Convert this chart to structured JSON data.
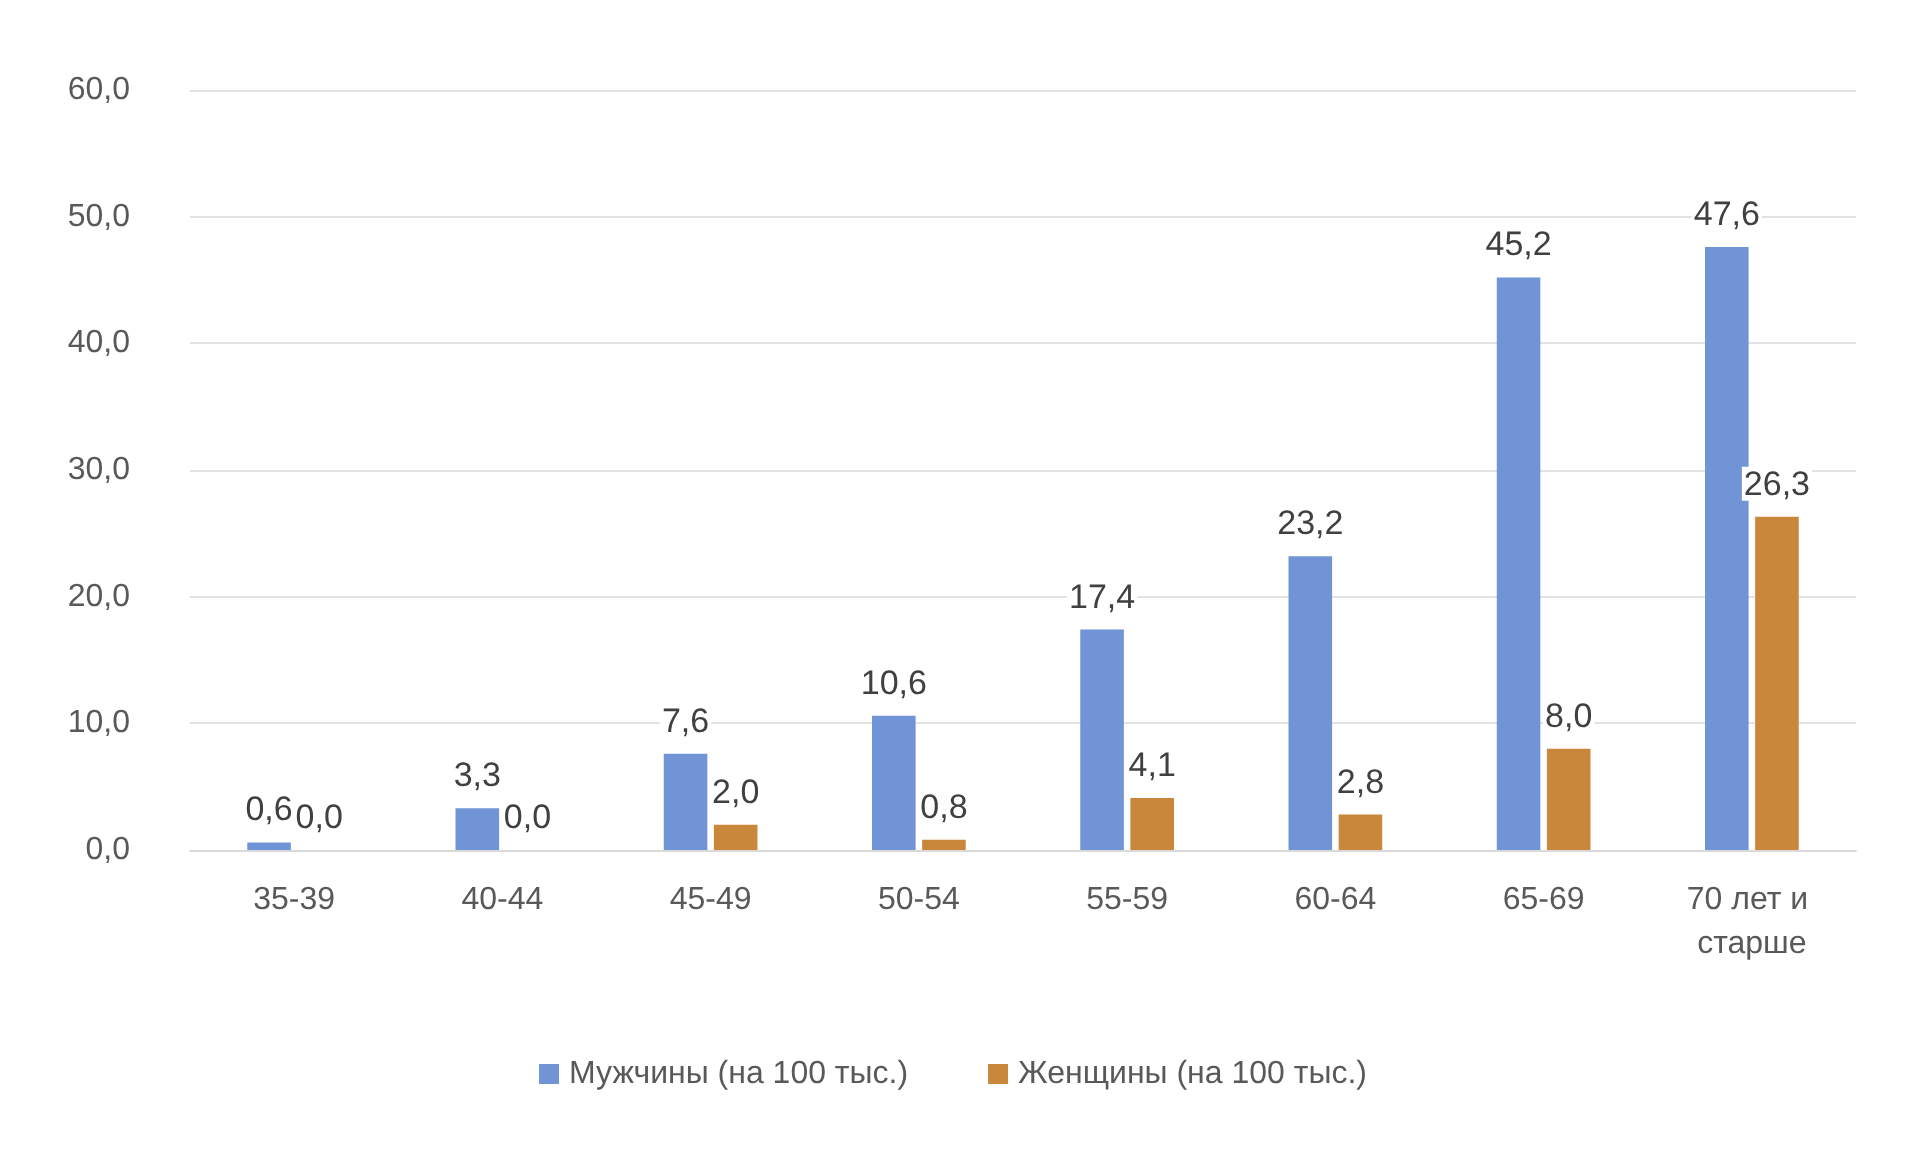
{
  "chart_data": {
    "type": "bar",
    "categories": [
      "35-39",
      "40-44",
      "45-49",
      "50-54",
      "55-59",
      "60-64",
      "65-69",
      "70 лет и старше"
    ],
    "series": [
      {
        "name": "Мужчины (на 100 тыс.)",
        "color": "#7094d6",
        "values": [
          0.6,
          3.3,
          7.6,
          10.6,
          17.4,
          23.2,
          45.2,
          47.6
        ],
        "value_labels": [
          "0,6",
          "3,3",
          "7,6",
          "10,6",
          "17,4",
          "23,2",
          "45,2",
          "47,6"
        ]
      },
      {
        "name": "Женщины (на 100 тыс.)",
        "color": "#c8873a",
        "values": [
          0.0,
          0.0,
          2.0,
          0.8,
          4.1,
          2.8,
          8.0,
          26.3
        ],
        "value_labels": [
          "0,0",
          "0,0",
          "2,0",
          "0,8",
          "4,1",
          "2,8",
          "8,0",
          "26,3"
        ]
      }
    ],
    "ylim": [
      0,
      60
    ],
    "yticks": [
      {
        "value": 0,
        "label": "0,0"
      },
      {
        "value": 10,
        "label": "10,0"
      },
      {
        "value": 20,
        "label": "20,0"
      },
      {
        "value": 30,
        "label": "30,0"
      },
      {
        "value": 40,
        "label": "40,0"
      },
      {
        "value": 50,
        "label": "50,0"
      },
      {
        "value": 60,
        "label": "60,0"
      }
    ],
    "grid": "y",
    "legend": "bottom"
  }
}
